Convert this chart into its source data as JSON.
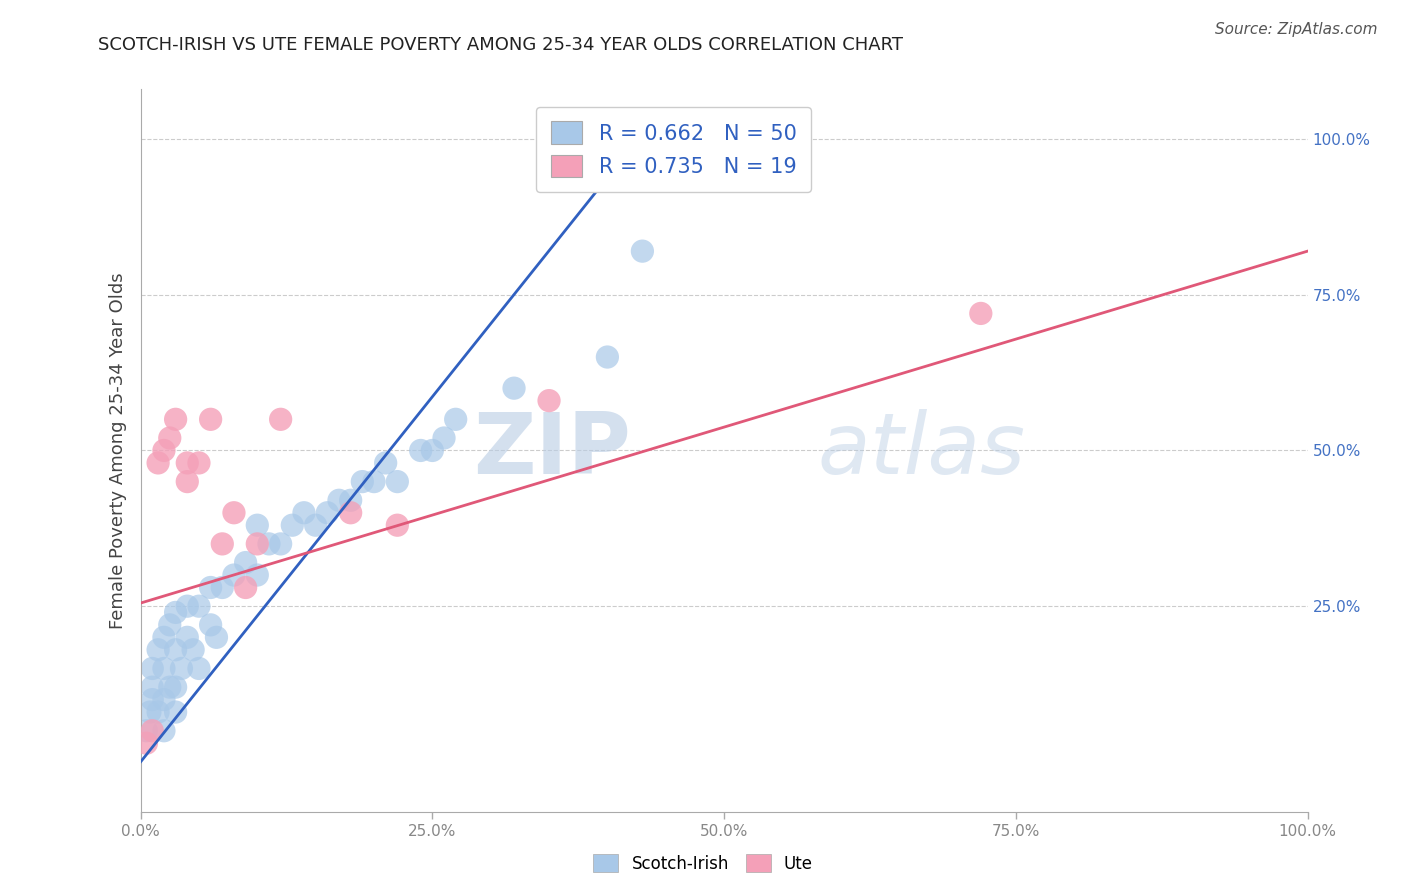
{
  "title": "SCOTCH-IRISH VS UTE FEMALE POVERTY AMONG 25-34 YEAR OLDS CORRELATION CHART",
  "source": "Source: ZipAtlas.com",
  "ylabel": "Female Poverty Among 25-34 Year Olds",
  "xlim": [
    0,
    1
  ],
  "ylim": [
    -0.08,
    1.08
  ],
  "xticks": [
    0,
    0.25,
    0.5,
    0.75,
    1.0
  ],
  "yticks": [
    0.25,
    0.5,
    0.75,
    1.0
  ],
  "xticklabels": [
    "0.0%",
    "25.0%",
    "50.0%",
    "75.0%",
    "100.0%"
  ],
  "yticklabels": [
    "25.0%",
    "50.0%",
    "75.0%",
    "100.0%"
  ],
  "scotch_irish_R": 0.662,
  "scotch_irish_N": 50,
  "ute_R": 0.735,
  "ute_N": 19,
  "scotch_irish_color": "#a8c8e8",
  "ute_color": "#f4a0b8",
  "scotch_irish_line_color": "#3060c0",
  "ute_line_color": "#e05878",
  "legend_label_scotch": "Scotch-Irish",
  "legend_label_ute": "Ute",
  "watermark_zip": "ZIP",
  "watermark_atlas": "atlas",
  "background_color": "#ffffff",
  "scotch_irish_x": [
    0.005,
    0.008,
    0.01,
    0.01,
    0.01,
    0.015,
    0.015,
    0.02,
    0.02,
    0.02,
    0.02,
    0.025,
    0.025,
    0.03,
    0.03,
    0.03,
    0.03,
    0.035,
    0.04,
    0.04,
    0.045,
    0.05,
    0.05,
    0.06,
    0.06,
    0.065,
    0.07,
    0.08,
    0.09,
    0.1,
    0.1,
    0.11,
    0.12,
    0.13,
    0.14,
    0.15,
    0.16,
    0.17,
    0.18,
    0.19,
    0.2,
    0.21,
    0.22,
    0.24,
    0.25,
    0.26,
    0.27,
    0.32,
    0.4,
    0.43
  ],
  "scotch_irish_y": [
    0.05,
    0.08,
    0.1,
    0.12,
    0.15,
    0.08,
    0.18,
    0.05,
    0.1,
    0.15,
    0.2,
    0.12,
    0.22,
    0.08,
    0.12,
    0.18,
    0.24,
    0.15,
    0.2,
    0.25,
    0.18,
    0.15,
    0.25,
    0.22,
    0.28,
    0.2,
    0.28,
    0.3,
    0.32,
    0.3,
    0.38,
    0.35,
    0.35,
    0.38,
    0.4,
    0.38,
    0.4,
    0.42,
    0.42,
    0.45,
    0.45,
    0.48,
    0.45,
    0.5,
    0.5,
    0.52,
    0.55,
    0.6,
    0.65,
    0.82
  ],
  "ute_x": [
    0.005,
    0.01,
    0.015,
    0.02,
    0.025,
    0.03,
    0.04,
    0.04,
    0.05,
    0.06,
    0.07,
    0.08,
    0.09,
    0.1,
    0.12,
    0.18,
    0.22,
    0.35,
    0.72
  ],
  "ute_y": [
    0.03,
    0.05,
    0.48,
    0.5,
    0.52,
    0.55,
    0.45,
    0.48,
    0.48,
    0.55,
    0.35,
    0.4,
    0.28,
    0.35,
    0.55,
    0.4,
    0.38,
    0.58,
    0.72
  ],
  "scotch_irish_line_x0": 0.0,
  "scotch_irish_line_x1": 0.435,
  "scotch_irish_line_y0": 0.0,
  "scotch_irish_line_y1": 1.02,
  "ute_line_x0": 0.0,
  "ute_line_x1": 1.0,
  "ute_line_y0": 0.255,
  "ute_line_y1": 0.82
}
